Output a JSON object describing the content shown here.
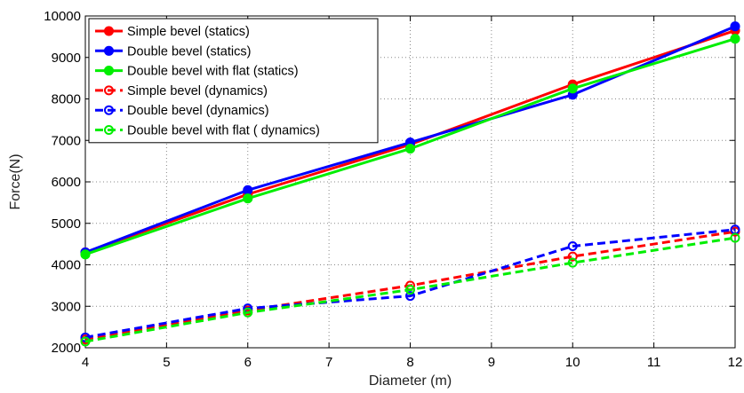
{
  "chart_data": {
    "type": "line",
    "xlabel": "Diameter (m)",
    "ylabel": "Force(N)",
    "xlim": [
      4,
      12
    ],
    "ylim": [
      2000,
      10000
    ],
    "xticks": [
      "4",
      "5",
      "6",
      "7",
      "8",
      "9",
      "10",
      "11",
      "12"
    ],
    "yticks": [
      "2000",
      "3000",
      "4000",
      "5000",
      "6000",
      "7000",
      "8000",
      "9000",
      "10000"
    ],
    "grid": true,
    "legend_position": "top-left",
    "x": [
      4,
      6,
      8,
      10,
      12
    ],
    "series": [
      {
        "name": "Simple bevel (statics)",
        "values": [
          4300,
          5700,
          6900,
          8350,
          9650
        ],
        "color": "#ff0000",
        "dash": "solid"
      },
      {
        "name": "Double bevel (statics)",
        "values": [
          4300,
          5800,
          6950,
          8100,
          9750
        ],
        "color": "#0000ff",
        "dash": "solid"
      },
      {
        "name": "Double bevel with flat (statics)",
        "values": [
          4250,
          5600,
          6800,
          8250,
          9450
        ],
        "color": "#00ee00",
        "dash": "solid"
      },
      {
        "name": "Simple bevel (dynamics)",
        "values": [
          2200,
          2900,
          3500,
          4200,
          4800
        ],
        "color": "#ff0000",
        "dash": "dashed"
      },
      {
        "name": "Double bevel (dynamics)",
        "values": [
          2250,
          2950,
          3250,
          4450,
          4850
        ],
        "color": "#0000ff",
        "dash": "dashed"
      },
      {
        "name": "Double bevel with flat ( dynamics)",
        "values": [
          2150,
          2850,
          3400,
          4050,
          4650
        ],
        "color": "#00ee00",
        "dash": "dashed"
      }
    ]
  }
}
